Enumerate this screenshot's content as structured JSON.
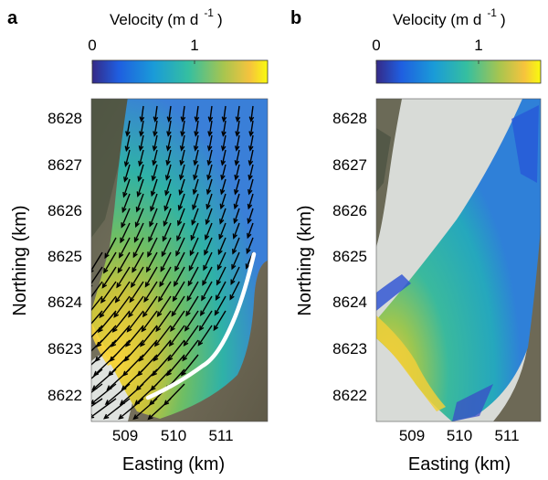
{
  "figure": {
    "panels": [
      {
        "id": "a",
        "letter": "a",
        "colorbar": {
          "title_main": "Velocity (m d",
          "title_exp": "-1",
          "title_close": ")",
          "tick_labels": [
            "0",
            "1"
          ],
          "range": [
            0,
            1.6
          ]
        },
        "xlabel": "Easting (km)",
        "ylabel": "Northing (km)",
        "x_ticks": [
          "509",
          "510",
          "511"
        ],
        "y_ticks": [
          "8628",
          "8627",
          "8626",
          "8625",
          "8624",
          "8623",
          "8622"
        ],
        "overlay": "velocity vectors (arrows) and calving front line (white)"
      },
      {
        "id": "b",
        "letter": "b",
        "colorbar": {
          "title_main": "Velocity (m d",
          "title_exp": "-1",
          "title_close": ")",
          "tick_labels": [
            "0",
            "1"
          ],
          "range": [
            0,
            1.6
          ]
        },
        "xlabel": "Easting (km)",
        "ylabel": "Northing (km)",
        "x_ticks": [
          "509",
          "510",
          "511"
        ],
        "y_ticks": [
          "8628",
          "8627",
          "8626",
          "8625",
          "8624",
          "8623",
          "8622"
        ],
        "overlay": "continuous velocity field"
      }
    ],
    "colors": {
      "viridis_low": "#352a87",
      "viridis_mid": "#23b3a6",
      "viridis_high": "#f9fb0e",
      "terrain": "#6d6a58",
      "ice": "#d9dcd9",
      "front_line": "#ffffff",
      "arrow": "#000000"
    }
  }
}
